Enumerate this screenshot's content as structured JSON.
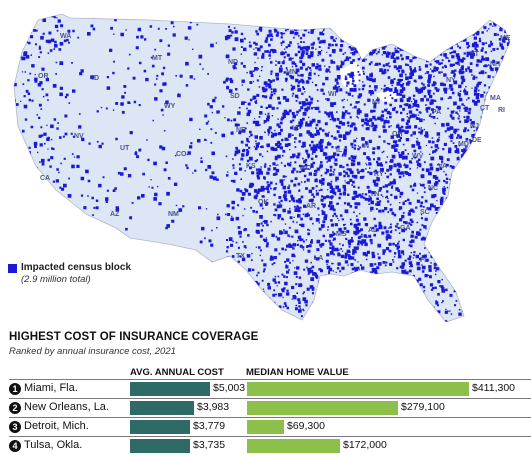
{
  "legend": {
    "swatch_color": "#1a1ad6",
    "title": "Impacted census block",
    "subtitle": "(2.9 million total)"
  },
  "map": {
    "base_color": "#dde6f4",
    "dot_color": "#1a1ad6",
    "state_labels": [
      "WA",
      "OR",
      "ID",
      "MT",
      "ND",
      "MN",
      "WI",
      "MI",
      "NY",
      "VT",
      "NH",
      "ME",
      "MA",
      "CT",
      "RI",
      "NJ",
      "PA",
      "SD",
      "WY",
      "NE",
      "IA",
      "IL",
      "IN",
      "OH",
      "WV",
      "VA",
      "MD",
      "DE",
      "NV",
      "UT",
      "CO",
      "KS",
      "MO",
      "KY",
      "CA",
      "AZ",
      "NM",
      "OK",
      "AR",
      "TN",
      "NC",
      "SC",
      "GA",
      "AL",
      "MS",
      "LA",
      "TX",
      "FL"
    ]
  },
  "table": {
    "title": "HIGHEST COST OF INSURANCE COVERAGE",
    "subtitle": "Ranked by annual insurance cost, 2021",
    "col_cost": "AVG. ANNUAL COST",
    "col_home": "MEDIAN HOME VALUE",
    "colors": {
      "cost_bar": "#2e6b66",
      "home_bar": "#8cc04a"
    },
    "rows": [
      {
        "rank": "1",
        "city": "Miami, Fla.",
        "cost": 5003,
        "cost_label": "$5,003",
        "home": 411300,
        "home_label": "$411,300"
      },
      {
        "rank": "2",
        "city": "New Orleans, La.",
        "cost": 3983,
        "cost_label": "$3,983",
        "home": 279100,
        "home_label": "$279,100"
      },
      {
        "rank": "3",
        "city": "Detroit, Mich.",
        "cost": 3779,
        "cost_label": "$3,779",
        "home": 69300,
        "home_label": "$69,300"
      },
      {
        "rank": "4",
        "city": "Tulsa, Okla.",
        "cost": 3735,
        "cost_label": "$3,735",
        "home": 172000,
        "home_label": "$172,000"
      }
    ]
  }
}
